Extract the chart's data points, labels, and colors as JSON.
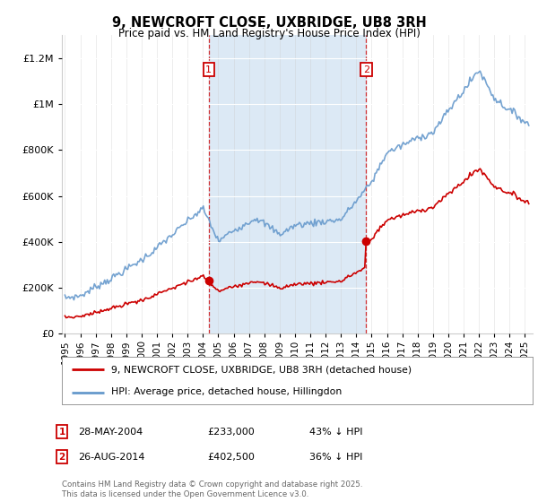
{
  "title": "9, NEWCROFT CLOSE, UXBRIDGE, UB8 3RH",
  "subtitle": "Price paid vs. HM Land Registry's House Price Index (HPI)",
  "background_color": "#ffffff",
  "plot_bg_color": "#ffffff",
  "shade_color": "#dce9f5",
  "sale1_date": 2004.38,
  "sale1_price": 233000,
  "sale1_label": "1",
  "sale2_date": 2014.65,
  "sale2_price": 402500,
  "sale2_label": "2",
  "legend_house": "9, NEWCROFT CLOSE, UXBRIDGE, UB8 3RH (detached house)",
  "legend_hpi": "HPI: Average price, detached house, Hillingdon",
  "footer": "Contains HM Land Registry data © Crown copyright and database right 2025.\nThis data is licensed under the Open Government Licence v3.0.",
  "house_color": "#cc0000",
  "hpi_color": "#6699cc",
  "ylim": [
    0,
    1300000
  ],
  "xlim_start": 1994.8,
  "xlim_end": 2025.5,
  "yticks": [
    0,
    200000,
    400000,
    600000,
    800000,
    1000000,
    1200000
  ]
}
